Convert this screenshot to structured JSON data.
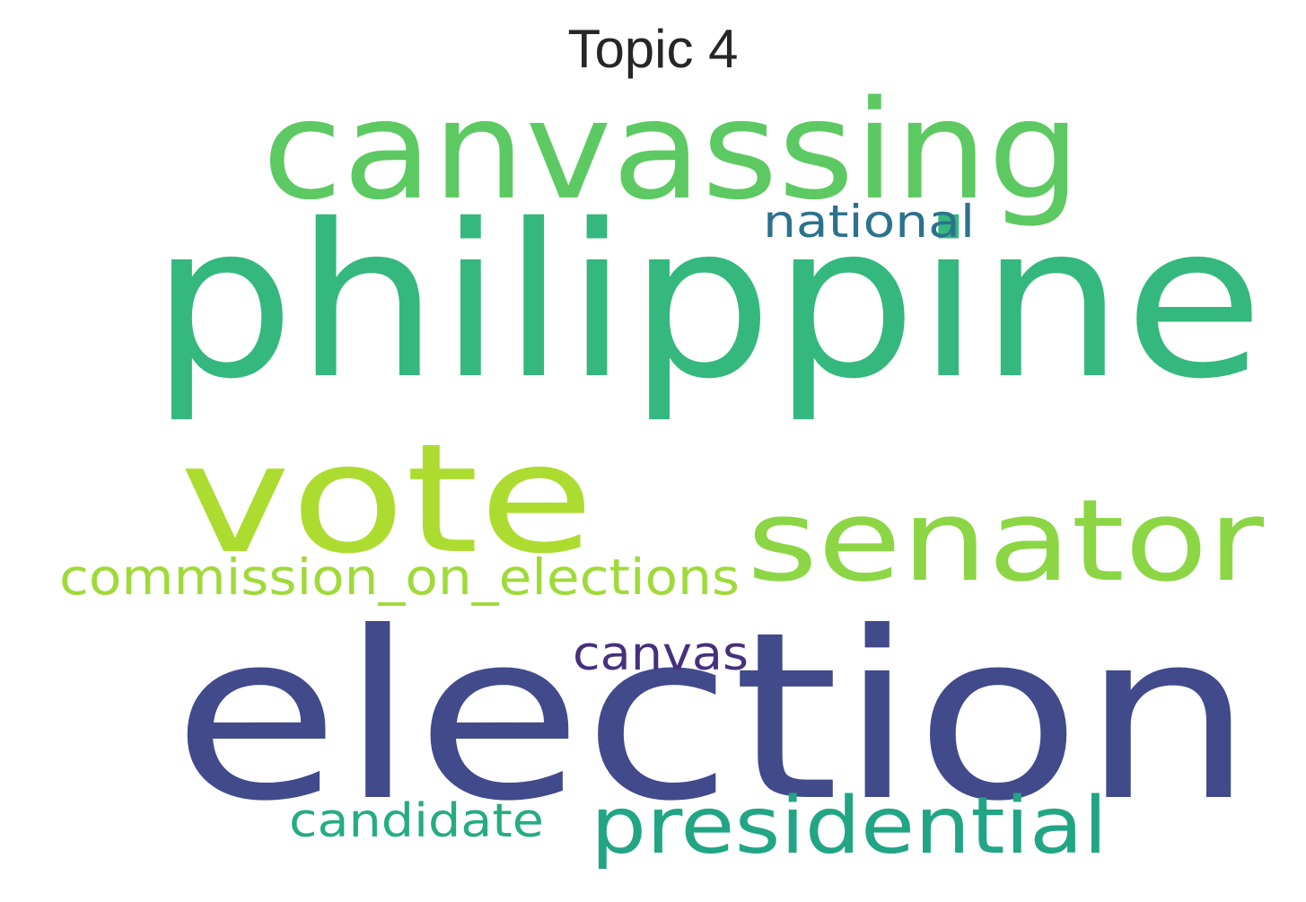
{
  "title": "Topic 4",
  "words": [
    {
      "text": "election",
      "color": "#414a8b"
    },
    {
      "text": "philippine",
      "color": "#34b87d"
    },
    {
      "text": "vote",
      "color": "#addc30"
    },
    {
      "text": "canvassing",
      "color": "#5dc962"
    },
    {
      "text": "senator",
      "color": "#8cd646"
    },
    {
      "text": "presidential",
      "color": "#21a585"
    },
    {
      "text": "commission_on_elections",
      "color": "#a0da39"
    },
    {
      "text": "national",
      "color": "#2c728e"
    },
    {
      "text": "canvas",
      "color": "#46307e"
    },
    {
      "text": "candidate",
      "color": "#26ac82"
    }
  ]
}
